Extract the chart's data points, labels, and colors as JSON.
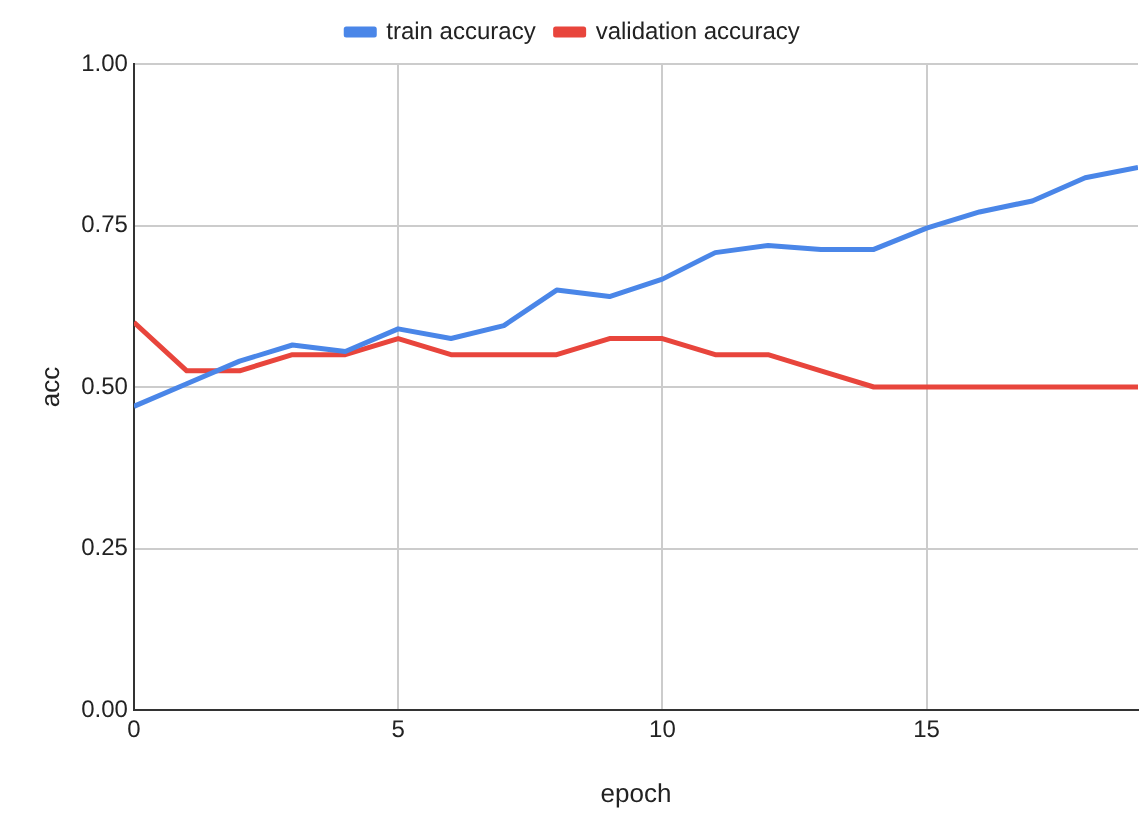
{
  "chart_data": {
    "type": "line",
    "xlabel": "epoch",
    "ylabel": "acc",
    "x": [
      0,
      1,
      2,
      3,
      4,
      5,
      6,
      7,
      8,
      9,
      10,
      11,
      12,
      13,
      14,
      15,
      16,
      17,
      18,
      19
    ],
    "series": [
      {
        "name": "train accuracy",
        "color": "#4a86e8",
        "values": [
          0.47,
          0.505,
          0.54,
          0.565,
          0.555,
          0.59,
          0.575,
          0.595,
          0.65,
          0.64,
          0.667,
          0.708,
          0.719,
          0.713,
          0.713,
          0.746,
          0.771,
          0.788,
          0.824,
          0.84
        ]
      },
      {
        "name": "validation accuracy",
        "color": "#e8453c",
        "values": [
          0.6,
          0.525,
          0.525,
          0.55,
          0.55,
          0.575,
          0.55,
          0.55,
          0.55,
          0.575,
          0.575,
          0.55,
          0.55,
          0.525,
          0.5,
          0.5,
          0.5,
          0.5,
          0.5,
          0.5
        ]
      }
    ],
    "xlim": [
      0,
      19
    ],
    "xticks": [
      0,
      5,
      10,
      15
    ],
    "ylim": [
      0,
      1
    ],
    "yticks": [
      {
        "value": 0,
        "label": "0.00"
      },
      {
        "value": 0.25,
        "label": "0.25"
      },
      {
        "value": 0.5,
        "label": "0.50"
      },
      {
        "value": 0.75,
        "label": "0.75"
      },
      {
        "value": 1,
        "label": "1.00"
      }
    ],
    "grid": true,
    "legend": "top",
    "marker": "none",
    "line_style": "solid"
  }
}
